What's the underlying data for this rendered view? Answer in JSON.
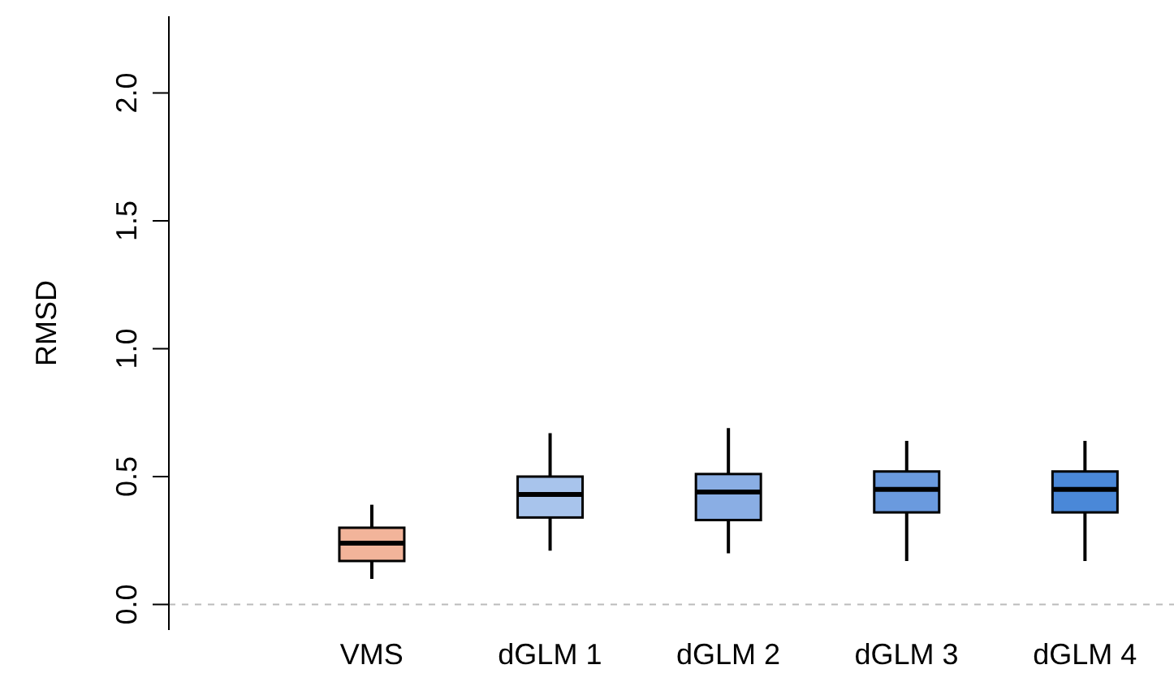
{
  "chart_data": {
    "type": "box",
    "ylabel": "RMSD",
    "categories": [
      "VMS",
      "dGLM 1",
      "dGLM 2",
      "dGLM 3",
      "dGLM 4"
    ],
    "boxes": [
      {
        "low": 0.1,
        "q1": 0.17,
        "median": 0.24,
        "q3": 0.3,
        "high": 0.39
      },
      {
        "low": 0.21,
        "q1": 0.34,
        "median": 0.43,
        "q3": 0.5,
        "high": 0.67
      },
      {
        "low": 0.2,
        "q1": 0.33,
        "median": 0.44,
        "q3": 0.51,
        "high": 0.69
      },
      {
        "low": 0.17,
        "q1": 0.36,
        "median": 0.45,
        "q3": 0.52,
        "high": 0.64
      },
      {
        "low": 0.17,
        "q1": 0.36,
        "median": 0.45,
        "q3": 0.52,
        "high": 0.64
      }
    ],
    "colors": [
      "#f2b49a",
      "#a8c4ec",
      "#8aaee4",
      "#6a9ade",
      "#4a88d8"
    ],
    "ylim": [
      -0.1,
      2.3
    ],
    "yticks": [
      {
        "value": 0,
        "label": "0.0"
      },
      {
        "value": 0.5,
        "label": "0.5"
      },
      {
        "value": 1,
        "label": "1.0"
      },
      {
        "value": 1.5,
        "label": "1.5"
      },
      {
        "value": 2,
        "label": "2.0"
      }
    ],
    "ref_lines": [
      {
        "axis": "y",
        "value": 0,
        "color": "#bbbbbb",
        "line_style": "dashed"
      }
    ],
    "grid": false,
    "legend": false
  }
}
